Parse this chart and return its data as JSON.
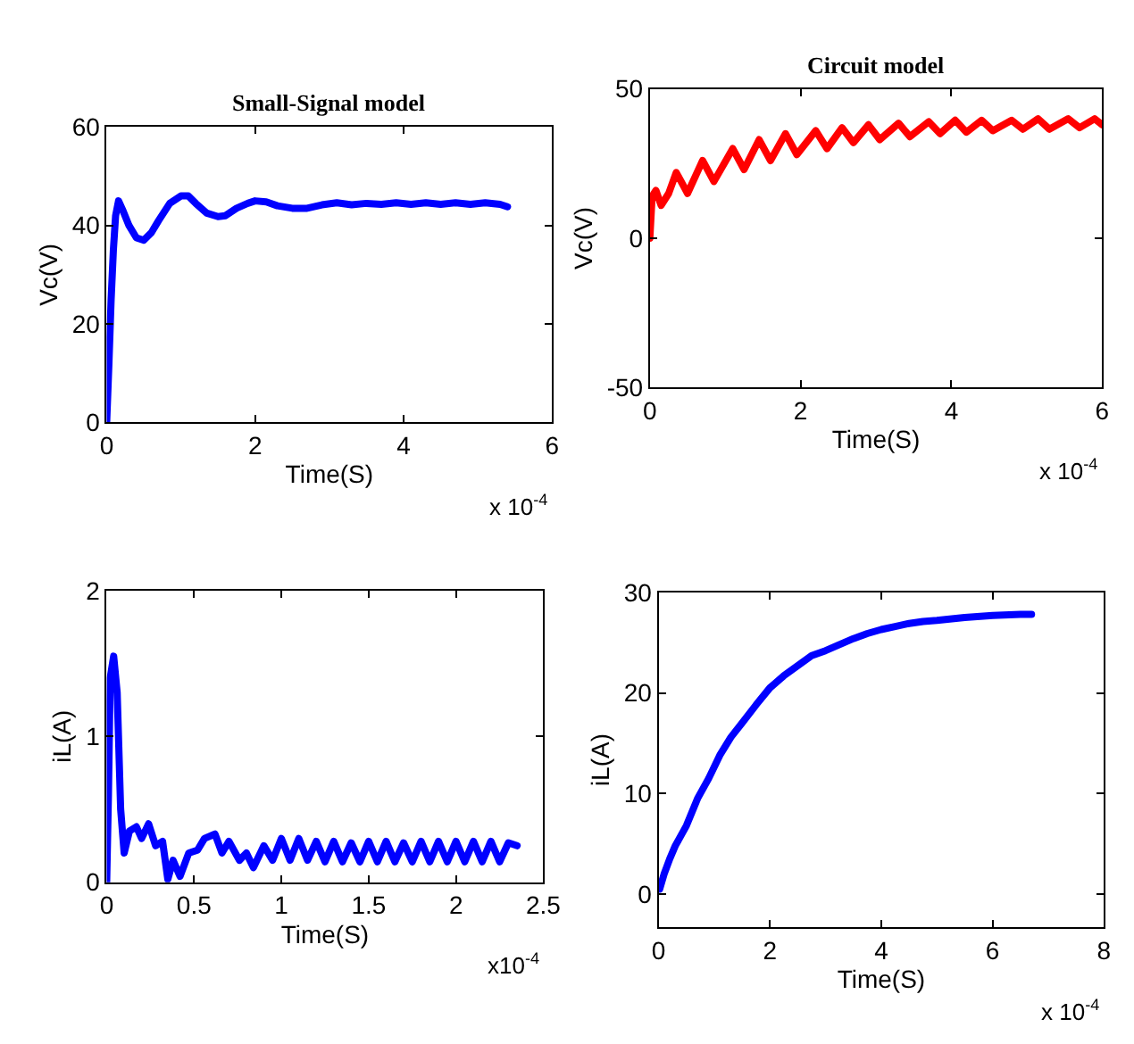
{
  "chart_data": [
    {
      "type": "line",
      "title": "Small-Signal model",
      "xlabel": "Time(S)",
      "ylabel": "Vc(V)",
      "annotations": [
        "x 10$^{-4}$"
      ],
      "xlim": [
        0,
        6
      ],
      "xticks": [
        0,
        2,
        4,
        6
      ],
      "ylim": [
        0,
        60
      ],
      "yticks": [
        0,
        20,
        40,
        60
      ],
      "series": [
        {
          "color": "#0000ff",
          "x": [
            0,
            0.03,
            0.06,
            0.09,
            0.12,
            0.16,
            0.22,
            0.3,
            0.4,
            0.5,
            0.6,
            0.7,
            0.85,
            1.0,
            1.1,
            1.2,
            1.35,
            1.5,
            1.6,
            1.75,
            1.9,
            2.0,
            2.15,
            2.3,
            2.5,
            2.7,
            2.9,
            3.1,
            3.3,
            3.5,
            3.7,
            3.9,
            4.1,
            4.3,
            4.5,
            4.7,
            4.9,
            5.1,
            5.3,
            5.4
          ],
          "values": [
            0,
            12,
            25,
            35,
            42,
            45,
            43,
            40,
            37.5,
            37,
            38.5,
            41,
            44.5,
            46,
            46,
            44.5,
            42.5,
            41.8,
            42,
            43.5,
            44.5,
            45,
            44.8,
            44,
            43.5,
            43.5,
            44.2,
            44.6,
            44.2,
            44.5,
            44.3,
            44.6,
            44.3,
            44.6,
            44.3,
            44.6,
            44.3,
            44.6,
            44.3,
            43.8
          ]
        }
      ]
    },
    {
      "type": "line",
      "title": "Circuit model",
      "xlabel": "Time(S)",
      "ylabel": "Vc(V)",
      "annotations": [
        "x 10$^{-4}$"
      ],
      "xlim": [
        0,
        6
      ],
      "xticks": [
        0,
        2,
        4,
        6
      ],
      "ylim": [
        -50,
        50
      ],
      "yticks": [
        -50,
        0,
        50
      ],
      "series": [
        {
          "color": "#ff0000",
          "x": [
            0,
            0.03,
            0.08,
            0.15,
            0.25,
            0.35,
            0.5,
            0.7,
            0.85,
            1.1,
            1.25,
            1.45,
            1.6,
            1.8,
            1.95,
            2.2,
            2.35,
            2.55,
            2.7,
            2.9,
            3.05,
            3.3,
            3.45,
            3.7,
            3.85,
            4.05,
            4.2,
            4.4,
            4.55,
            4.8,
            4.95,
            5.15,
            5.3,
            5.55,
            5.7,
            5.9,
            6
          ],
          "values": [
            0,
            14,
            16,
            11,
            15,
            22,
            15,
            26,
            19,
            30,
            23,
            33,
            26,
            35,
            28,
            36,
            30,
            37,
            32,
            38,
            33,
            38.5,
            34,
            39,
            35,
            39.5,
            35.5,
            39.5,
            36,
            39.5,
            36.5,
            40,
            36.5,
            40,
            37,
            40,
            38
          ]
        }
      ]
    },
    {
      "type": "line",
      "xlabel": "Time(S)",
      "ylabel": "iL(A)",
      "annotations": [
        "x10$^{-4}$"
      ],
      "xlim": [
        0,
        2.5
      ],
      "xticks": [
        0,
        0.5,
        1,
        1.5,
        2,
        2.5
      ],
      "ylim": [
        0,
        2
      ],
      "yticks": [
        0,
        1,
        2
      ],
      "series": [
        {
          "color": "#0000ff",
          "x": [
            0,
            0.01,
            0.02,
            0.04,
            0.06,
            0.08,
            0.1,
            0.13,
            0.17,
            0.2,
            0.24,
            0.28,
            0.32,
            0.35,
            0.38,
            0.42,
            0.47,
            0.52,
            0.56,
            0.62,
            0.66,
            0.7,
            0.76,
            0.8,
            0.84,
            0.9,
            0.95,
            1.0,
            1.05,
            1.1,
            1.15,
            1.2,
            1.25,
            1.3,
            1.35,
            1.4,
            1.45,
            1.5,
            1.55,
            1.6,
            1.65,
            1.7,
            1.75,
            1.8,
            1.85,
            1.9,
            1.95,
            2.0,
            2.05,
            2.1,
            2.15,
            2.2,
            2.25,
            2.3,
            2.35
          ],
          "values": [
            0,
            0.6,
            1.4,
            1.55,
            1.3,
            0.5,
            0.2,
            0.35,
            0.38,
            0.3,
            0.4,
            0.25,
            0.28,
            0.02,
            0.15,
            0.04,
            0.2,
            0.22,
            0.3,
            0.33,
            0.2,
            0.28,
            0.15,
            0.2,
            0.1,
            0.25,
            0.15,
            0.3,
            0.15,
            0.3,
            0.15,
            0.28,
            0.14,
            0.28,
            0.14,
            0.27,
            0.14,
            0.28,
            0.14,
            0.28,
            0.14,
            0.27,
            0.14,
            0.28,
            0.14,
            0.28,
            0.14,
            0.28,
            0.14,
            0.28,
            0.14,
            0.28,
            0.14,
            0.27,
            0.25
          ]
        }
      ]
    },
    {
      "type": "line",
      "xlabel": "Time(S)",
      "ylabel": "iL(A)",
      "annotations": [
        "x 10$^{-4}$"
      ],
      "xlim": [
        0,
        8
      ],
      "xticks": [
        0,
        2,
        4,
        6,
        8
      ],
      "ylim": [
        -3.3,
        30
      ],
      "yticks": [
        0,
        10,
        20,
        30
      ],
      "series": [
        {
          "color": "#0000ff",
          "x": [
            0.02,
            0.1,
            0.2,
            0.3,
            0.5,
            0.7,
            0.9,
            1.1,
            1.3,
            1.5,
            1.75,
            2.0,
            2.25,
            2.5,
            2.75,
            3.0,
            3.25,
            3.5,
            3.75,
            4.0,
            4.25,
            4.5,
            4.75,
            5.0,
            5.5,
            6.0,
            6.5,
            6.7
          ],
          "values": [
            0.5,
            2,
            3.5,
            4.8,
            6.8,
            9.5,
            11.5,
            13.8,
            15.6,
            17,
            18.8,
            20.5,
            21.7,
            22.7,
            23.7,
            24.2,
            24.8,
            25.4,
            25.9,
            26.3,
            26.6,
            26.9,
            27.1,
            27.2,
            27.5,
            27.7,
            27.8,
            27.8
          ]
        }
      ]
    }
  ]
}
